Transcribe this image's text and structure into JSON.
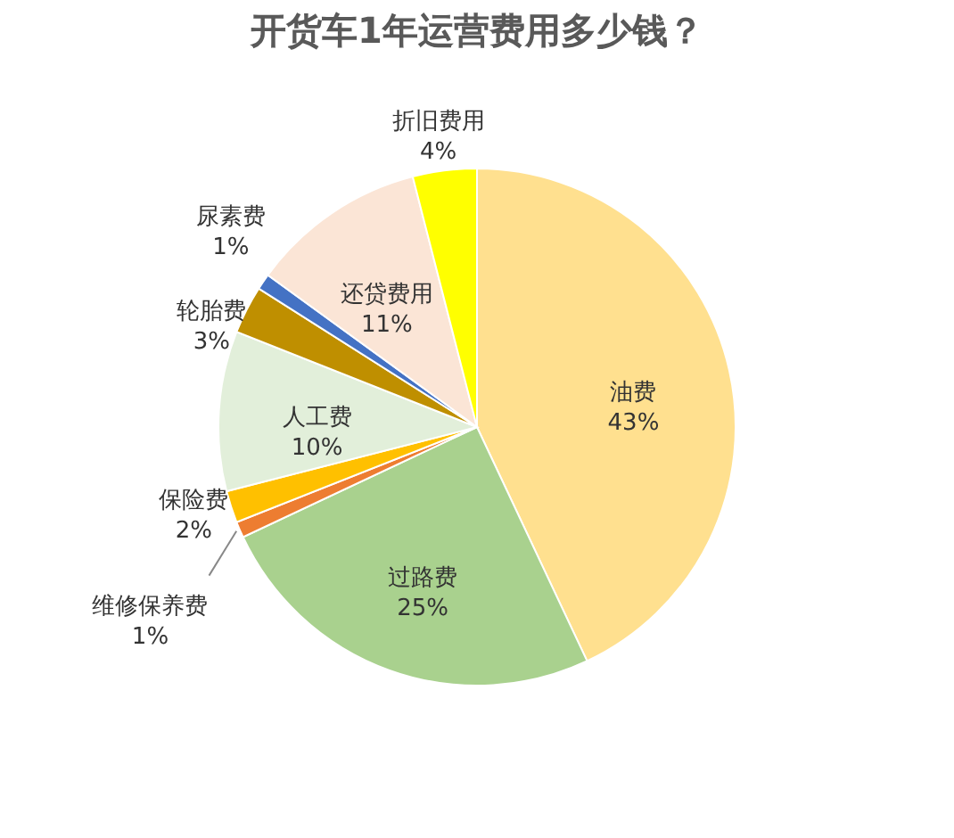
{
  "chart_data": {
    "type": "pie",
    "title": "开货车1年运营费用多少钱？",
    "categories": [
      "油费",
      "过路费",
      "维修保养费",
      "保险费",
      "人工费",
      "轮胎费",
      "尿素费",
      "还贷费用",
      "折旧费用"
    ],
    "values": [
      43,
      25,
      1,
      2,
      10,
      3,
      1,
      11,
      4
    ],
    "value_labels": [
      "43%",
      "25%",
      "1%",
      "2%",
      "10%",
      "3%",
      "1%",
      "11%",
      "4%"
    ],
    "colors": [
      "#ffe08f",
      "#a9d18e",
      "#ed7d31",
      "#ffc000",
      "#e2efda",
      "#bf8f00",
      "#4472c4",
      "#fbe5d6",
      "#ffff00"
    ],
    "legend": false
  }
}
